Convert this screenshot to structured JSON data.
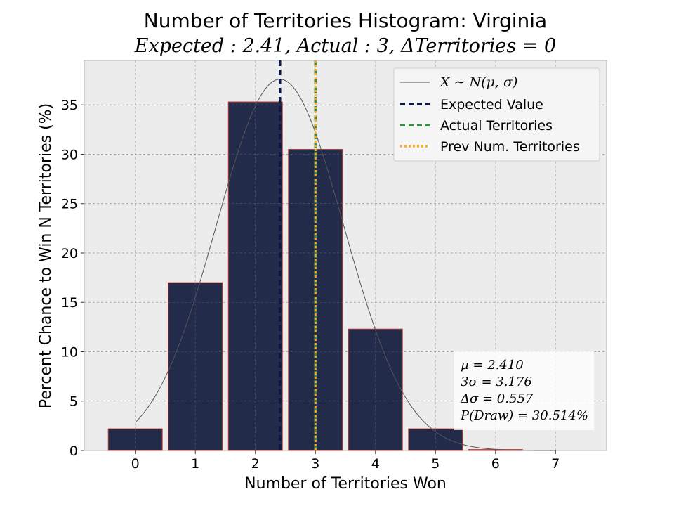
{
  "chart_data": {
    "type": "bar",
    "title": "Number of Territories Histogram: Virginia",
    "subtitle": "Expected : 2.41, Actual : 3, ΔTerritories = 0",
    "xlabel": "Number of Territories Won",
    "ylabel": "Percent Chance to Win N Territories (%)",
    "categories": [
      "0",
      "1",
      "2",
      "3",
      "4",
      "5",
      "6",
      "7"
    ],
    "x": [
      0,
      1,
      2,
      3,
      4,
      5,
      6,
      7
    ],
    "values": [
      2.2,
      17.0,
      35.3,
      30.5,
      12.3,
      2.2,
      0.1,
      0.0
    ],
    "xlim": [
      -0.85,
      7.85
    ],
    "ylim": [
      0,
      39.5
    ],
    "yticks": [
      0,
      5,
      10,
      15,
      20,
      25,
      30,
      35
    ],
    "grid": true,
    "normal_curve": {
      "mu": 2.41,
      "sigma": 1.06,
      "peak": 37.6,
      "x_range": [
        0,
        7
      ]
    },
    "vlines": [
      {
        "name": "Expected Value",
        "x": 2.41,
        "style": "dashed",
        "color": "#0d1847"
      },
      {
        "name": "Actual Territories",
        "x": 3,
        "style": "dashed",
        "color": "#3a8d45"
      },
      {
        "name": "Prev Num. Territories",
        "x": 3,
        "style": "dotted",
        "color": "#ffb020"
      }
    ],
    "legend": {
      "placement": "top-right",
      "entries": [
        "X ∼ N(μ, σ)",
        "Expected Value",
        "Actual Territories",
        "Prev Num. Territories"
      ]
    },
    "stats_box": {
      "placement": "bottom-right",
      "lines": [
        "μ = 2.410",
        "3σ = 3.176",
        "Δσ = 0.557",
        "P(Draw) = 30.514%"
      ]
    },
    "colors": {
      "bar_fill": "#222b4a",
      "bar_edge": "#c0392b",
      "plot_bg": "#ececec",
      "grid": "#b0b0b0",
      "curve": "#555555"
    }
  }
}
